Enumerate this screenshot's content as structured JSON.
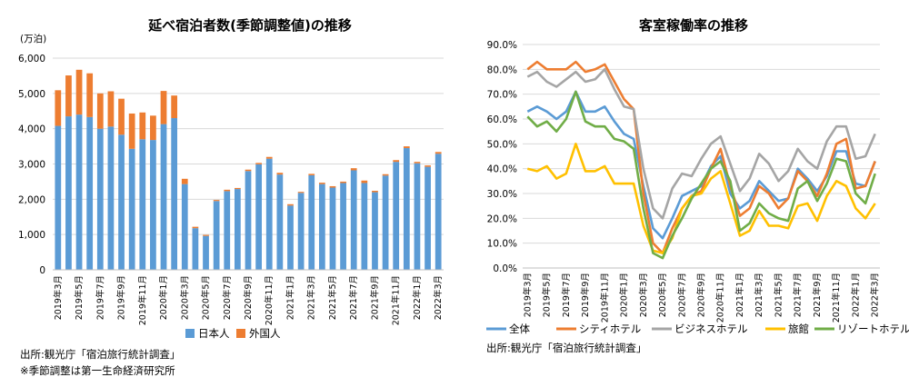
{
  "chart_data": [
    {
      "type": "bar",
      "stacked": true,
      "title": "延べ宿泊者数(季節調整値)の推移",
      "ylabel": "(万泊)",
      "ylim": [
        0,
        6000
      ],
      "yticks": [
        "0",
        "1,000",
        "2,000",
        "3,000",
        "4,000",
        "5,000",
        "6,000"
      ],
      "ytick_values": [
        0,
        1000,
        2000,
        3000,
        4000,
        5000,
        6000
      ],
      "categories": [
        "2019年3月",
        "2019年4月",
        "2019年5月",
        "2019年6月",
        "2019年7月",
        "2019年8月",
        "2019年9月",
        "2019年10月",
        "2019年11月",
        "2019年12月",
        "2020年1月",
        "2020年2月",
        "2020年3月",
        "2020年4月",
        "2020年5月",
        "2020年6月",
        "2020年7月",
        "2020年8月",
        "2020年9月",
        "2020年10月",
        "2020年11月",
        "2020年12月",
        "2021年1月",
        "2021年2月",
        "2021年3月",
        "2021年4月",
        "2021年5月",
        "2021年6月",
        "2021年7月",
        "2021年8月",
        "2021年9月",
        "2021年10月",
        "2021年11月",
        "2021年12月",
        "2022年1月",
        "2022年2月",
        "2022年3月"
      ],
      "xtick_labels": [
        "2019年3月",
        "2019年5月",
        "2019年7月",
        "2019年9月",
        "2019年11月",
        "2020年1月",
        "2020年3月",
        "2020年5月",
        "2020年7月",
        "2020年9月",
        "2020年11月",
        "2021年1月",
        "2021年3月",
        "2021年5月",
        "2021年7月",
        "2021年9月",
        "2021年11月",
        "2022年1月",
        "2022年3月"
      ],
      "series": [
        {
          "name": "日本人",
          "color": "#5b9bd5",
          "values": [
            4080,
            4350,
            4400,
            4330,
            4000,
            4060,
            3830,
            3430,
            3700,
            3680,
            4130,
            4300,
            2430,
            1180,
            960,
            1950,
            2230,
            2290,
            2800,
            2990,
            3150,
            2700,
            1820,
            2180,
            2680,
            2430,
            2330,
            2460,
            2820,
            2460,
            2200,
            2670,
            3060,
            3450,
            3020,
            2920,
            3290
          ]
        },
        {
          "name": "外国人",
          "color": "#ed7d31",
          "values": [
            1010,
            1160,
            1270,
            1240,
            1000,
            1000,
            1020,
            1000,
            760,
            690,
            940,
            640,
            150,
            40,
            30,
            30,
            40,
            30,
            40,
            40,
            50,
            50,
            40,
            30,
            40,
            40,
            40,
            40,
            60,
            70,
            40,
            40,
            50,
            50,
            40,
            40,
            50
          ]
        }
      ]
    },
    {
      "type": "line",
      "title": "客室稼働率の推移",
      "ylim": [
        0,
        90
      ],
      "yticks": [
        "0.0%",
        "10.0%",
        "20.0%",
        "30.0%",
        "40.0%",
        "50.0%",
        "60.0%",
        "70.0%",
        "80.0%",
        "90.0%"
      ],
      "ytick_values": [
        0,
        10,
        20,
        30,
        40,
        50,
        60,
        70,
        80,
        90
      ],
      "categories": [
        "2019年3月",
        "2019年4月",
        "2019年5月",
        "2019年6月",
        "2019年7月",
        "2019年8月",
        "2019年9月",
        "2019年10月",
        "2019年11月",
        "2019年12月",
        "2020年1月",
        "2020年2月",
        "2020年3月",
        "2020年4月",
        "2020年5月",
        "2020年6月",
        "2020年7月",
        "2020年8月",
        "2020年9月",
        "2020年10月",
        "2020年11月",
        "2020年12月",
        "2021年1月",
        "2021年2月",
        "2021年3月",
        "2021年4月",
        "2021年5月",
        "2021年6月",
        "2021年7月",
        "2021年8月",
        "2021年9月",
        "2021年10月",
        "2021年11月",
        "2021年12月",
        "2022年1月",
        "2022年2月",
        "2022年3月"
      ],
      "xtick_labels": [
        "2019年3月",
        "2019年5月",
        "2019年7月",
        "2019年9月",
        "2019年11月",
        "2020年1月",
        "2020年3月",
        "2020年5月",
        "2020年7月",
        "2020年9月",
        "2020年11月",
        "2021年1月",
        "2021年3月",
        "2021年5月",
        "2021年7月",
        "2021年9月",
        "2021年11月",
        "2022年1月",
        "2022年3月"
      ],
      "series": [
        {
          "name": "全体",
          "color": "#5b9bd5",
          "values": [
            63,
            65,
            63,
            60,
            63,
            71,
            63,
            63,
            65,
            59,
            54,
            52,
            33,
            16,
            12,
            20,
            29,
            31,
            33,
            41,
            45,
            30,
            24,
            27,
            35,
            31,
            27,
            28,
            40,
            36,
            31,
            37,
            47,
            47,
            34,
            33,
            43
          ]
        },
        {
          "name": "シティホテル",
          "color": "#ed7d31",
          "values": [
            80,
            83,
            80,
            80,
            80,
            83,
            79,
            80,
            82,
            75,
            68,
            64,
            30,
            10,
            6,
            16,
            24,
            29,
            31,
            40,
            48,
            33,
            21,
            24,
            33,
            30,
            24,
            28,
            39,
            35,
            29,
            38,
            50,
            52,
            32,
            33,
            43
          ]
        },
        {
          "name": "ビジネスホテル",
          "color": "#a5a5a5",
          "values": [
            77,
            79,
            75,
            73,
            76,
            79,
            75,
            76,
            80,
            72,
            65,
            64,
            40,
            24,
            20,
            32,
            38,
            37,
            44,
            50,
            53,
            42,
            31,
            36,
            46,
            42,
            35,
            39,
            48,
            43,
            40,
            51,
            57,
            57,
            44,
            45,
            54
          ]
        },
        {
          "name": "旅館",
          "color": "#ffc000",
          "values": [
            40,
            39,
            41,
            36,
            38,
            50,
            39,
            39,
            41,
            34,
            34,
            34,
            17,
            7,
            6,
            12,
            24,
            29,
            30,
            36,
            39,
            26,
            13,
            15,
            23,
            17,
            17,
            16,
            25,
            26,
            19,
            29,
            35,
            33,
            24,
            20,
            26
          ]
        },
        {
          "name": "リゾートホテル",
          "color": "#70ad47",
          "values": [
            61,
            57,
            59,
            55,
            60,
            71,
            59,
            57,
            57,
            52,
            51,
            48,
            24,
            6,
            4,
            13,
            20,
            28,
            34,
            40,
            43,
            35,
            15,
            18,
            26,
            22,
            20,
            19,
            32,
            35,
            27,
            34,
            44,
            43,
            30,
            26,
            38
          ]
        }
      ]
    }
  ],
  "left_notes": {
    "source": "出所:観光庁「宿泊旅行統計調査」",
    "note": "※季節調整は第一生命経済研究所"
  },
  "right_notes": {
    "source": "出所:観光庁「宿泊旅行統計調査」"
  }
}
